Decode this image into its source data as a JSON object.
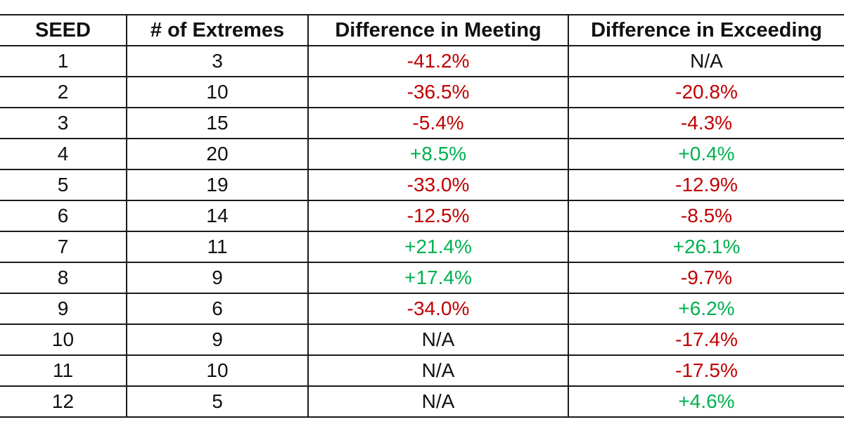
{
  "colors": {
    "negative": "#c00000",
    "positive": "#00b050",
    "neutral": "#111111"
  },
  "table": {
    "headers": [
      "SEED",
      "# of Extremes",
      "Difference in Meeting",
      "Difference in Exceeding"
    ],
    "rows": [
      {
        "seed": "1",
        "extremes": "3",
        "meeting": "-41.2%",
        "meeting_tone": "negative",
        "exceeding": "N/A",
        "exceeding_tone": "neutral"
      },
      {
        "seed": "2",
        "extremes": "10",
        "meeting": "-36.5%",
        "meeting_tone": "negative",
        "exceeding": "-20.8%",
        "exceeding_tone": "negative"
      },
      {
        "seed": "3",
        "extremes": "15",
        "meeting": "-5.4%",
        "meeting_tone": "negative",
        "exceeding": "-4.3%",
        "exceeding_tone": "negative"
      },
      {
        "seed": "4",
        "extremes": "20",
        "meeting": "+8.5%",
        "meeting_tone": "positive",
        "exceeding": "+0.4%",
        "exceeding_tone": "positive"
      },
      {
        "seed": "5",
        "extremes": "19",
        "meeting": "-33.0%",
        "meeting_tone": "negative",
        "exceeding": "-12.9%",
        "exceeding_tone": "negative"
      },
      {
        "seed": "6",
        "extremes": "14",
        "meeting": "-12.5%",
        "meeting_tone": "negative",
        "exceeding": "-8.5%",
        "exceeding_tone": "negative"
      },
      {
        "seed": "7",
        "extremes": "11",
        "meeting": "+21.4%",
        "meeting_tone": "positive",
        "exceeding": "+26.1%",
        "exceeding_tone": "positive"
      },
      {
        "seed": "8",
        "extremes": "9",
        "meeting": "+17.4%",
        "meeting_tone": "positive",
        "exceeding": "-9.7%",
        "exceeding_tone": "negative"
      },
      {
        "seed": "9",
        "extremes": "6",
        "meeting": "-34.0%",
        "meeting_tone": "negative",
        "exceeding": "+6.2%",
        "exceeding_tone": "positive"
      },
      {
        "seed": "10",
        "extremes": "9",
        "meeting": "N/A",
        "meeting_tone": "neutral",
        "exceeding": "-17.4%",
        "exceeding_tone": "negative"
      },
      {
        "seed": "11",
        "extremes": "10",
        "meeting": "N/A",
        "meeting_tone": "neutral",
        "exceeding": "-17.5%",
        "exceeding_tone": "negative"
      },
      {
        "seed": "12",
        "extremes": "5",
        "meeting": "N/A",
        "meeting_tone": "neutral",
        "exceeding": "+4.6%",
        "exceeding_tone": "positive"
      }
    ]
  }
}
